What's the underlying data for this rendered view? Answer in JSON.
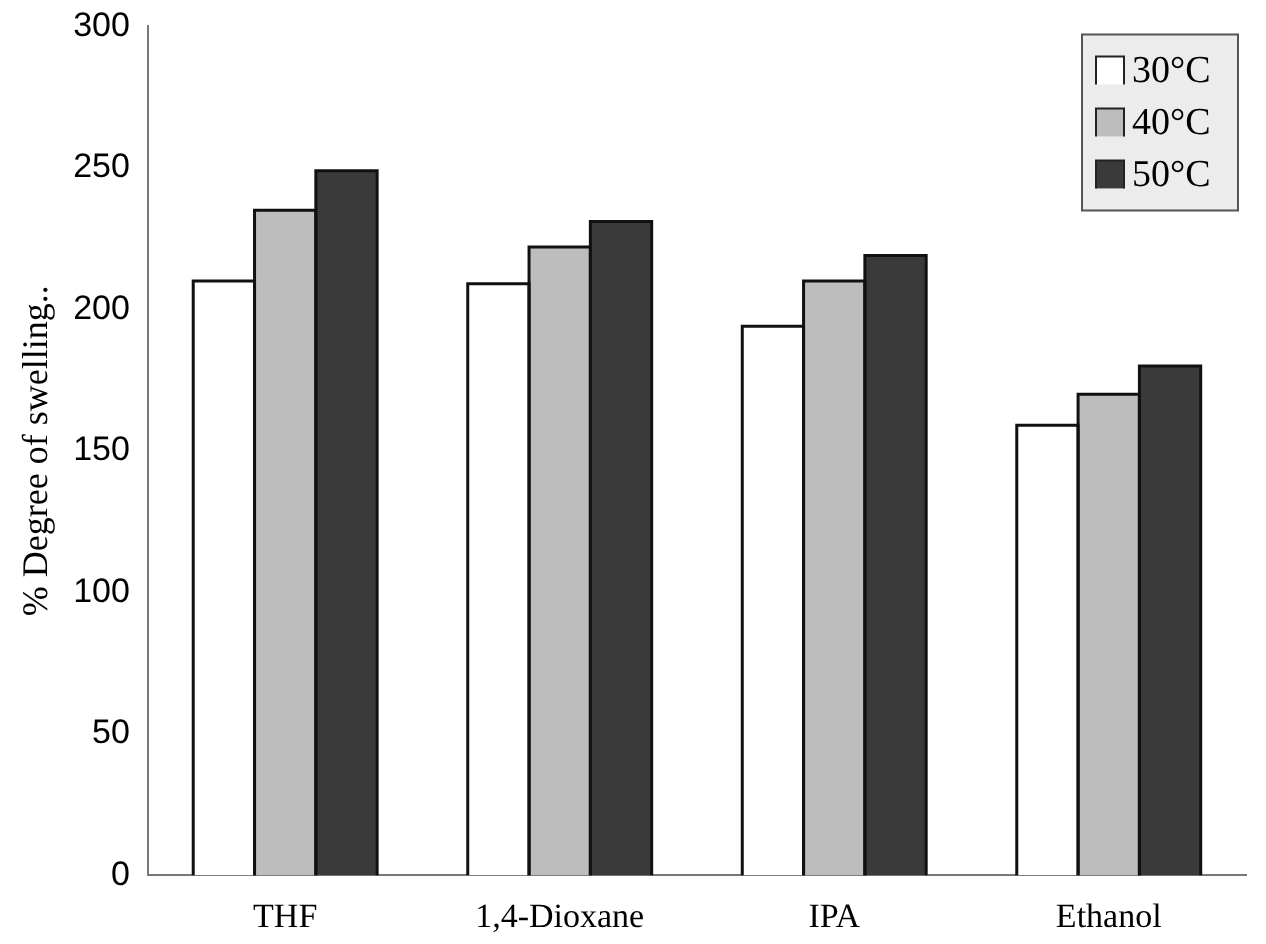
{
  "chart_data": {
    "type": "bar",
    "ylabel": "% Degree of swelling..",
    "categories": [
      "THF",
      "1,4-Dioxane",
      "IPA",
      "Ethanol"
    ],
    "series": [
      {
        "name": "30°C",
        "color": "#ffffff",
        "values": [
          210,
          209,
          194,
          159
        ]
      },
      {
        "name": "40°C",
        "color": "#bdbdbd",
        "values": [
          235,
          222,
          210,
          170
        ]
      },
      {
        "name": "50°C",
        "color": "#3a3a3a",
        "values": [
          249,
          231,
          219,
          180
        ]
      }
    ],
    "ylim": [
      0,
      300
    ],
    "yticks": [
      0,
      50,
      100,
      150,
      200,
      250,
      300
    ],
    "grid": false,
    "legend": "top right"
  }
}
